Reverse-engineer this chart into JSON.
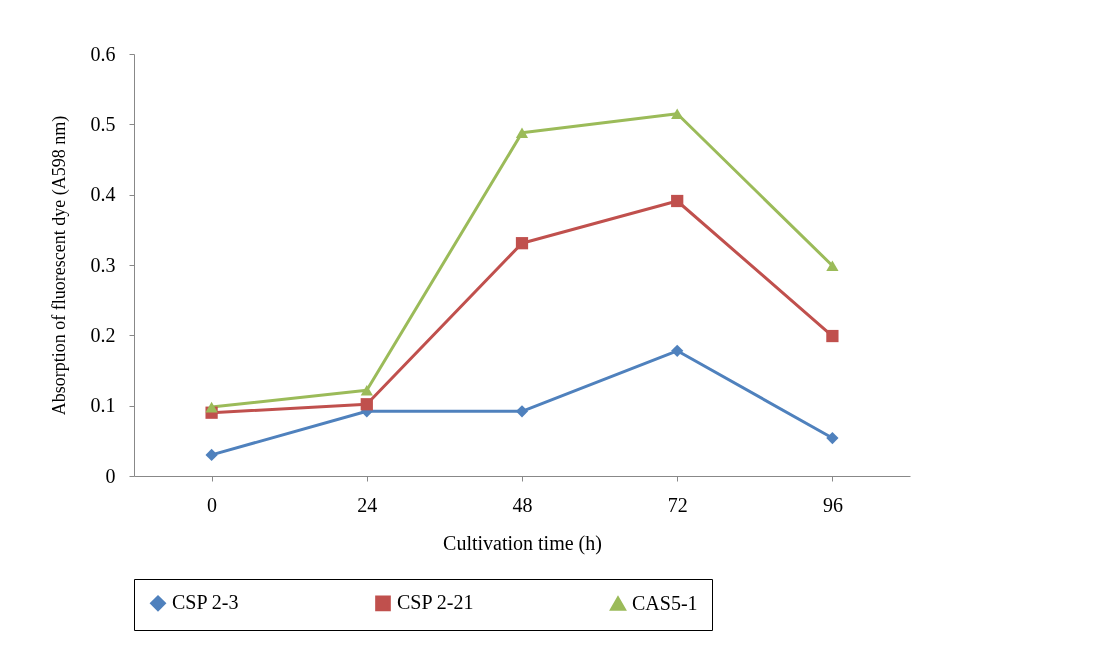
{
  "chart_data": {
    "type": "line",
    "xlabel": "Cultivation time (h)",
    "ylabel": "Absorption of fluorescent dye (A598 nm)",
    "categories": [
      "0",
      "24",
      "48",
      "72",
      "96"
    ],
    "series": [
      {
        "name": "CSP 2-3",
        "color": "#4f81bd",
        "marker": "diamond",
        "values": [
          0.03,
          0.092,
          0.092,
          0.178,
          0.054
        ]
      },
      {
        "name": "CSP 2-21",
        "color": "#c0504d",
        "marker": "square",
        "values": [
          0.09,
          0.102,
          0.331,
          0.391,
          0.199
        ]
      },
      {
        "name": "CAS5-1",
        "color": "#9bbb59",
        "marker": "triangle",
        "values": [
          0.098,
          0.122,
          0.488,
          0.515,
          0.299
        ]
      }
    ],
    "ylim": [
      0,
      0.6
    ],
    "yticks": [
      0,
      0.1,
      0.2,
      0.3,
      0.4,
      0.5,
      0.6
    ],
    "grid": false,
    "legend": "bottom"
  }
}
